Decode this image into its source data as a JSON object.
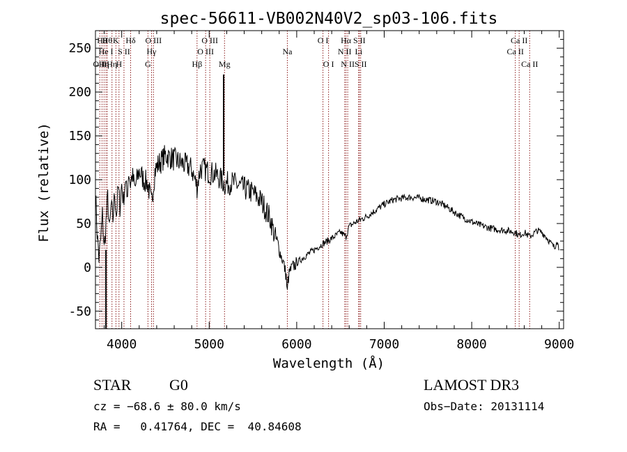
{
  "chart_data": {
    "type": "line",
    "title": "spec-56611-VB002N40V2_sp03-106.fits",
    "xlabel": "Wavelength (Å)",
    "ylabel": "Flux (relative)",
    "xlim": [
      3700,
      9050
    ],
    "ylim": [
      -70,
      270
    ],
    "xticks": [
      4000,
      5000,
      6000,
      7000,
      8000,
      9000
    ],
    "yticks": [
      -50,
      0,
      50,
      100,
      150,
      200,
      250
    ],
    "series": [
      {
        "name": "flux",
        "points": [
          [
            3700,
            85
          ],
          [
            3720,
            40
          ],
          [
            3740,
            10
          ],
          [
            3760,
            30
          ],
          [
            3780,
            60
          ],
          [
            3800,
            20
          ],
          [
            3820,
            50
          ],
          [
            3840,
            80
          ],
          [
            3860,
            40
          ],
          [
            3880,
            70
          ],
          [
            3900,
            55
          ],
          [
            3920,
            85
          ],
          [
            3940,
            60
          ],
          [
            3960,
            90
          ],
          [
            3980,
            70
          ],
          [
            4000,
            95
          ],
          [
            4020,
            75
          ],
          [
            4040,
            100
          ],
          [
            4060,
            80
          ],
          [
            4080,
            110
          ],
          [
            4100,
            95
          ],
          [
            4120,
            105
          ],
          [
            4150,
            90
          ],
          [
            4200,
            110
          ],
          [
            4250,
            100
          ],
          [
            4300,
            95
          ],
          [
            4340,
            72
          ],
          [
            4380,
            110
          ],
          [
            4420,
            118
          ],
          [
            4460,
            122
          ],
          [
            4500,
            128
          ],
          [
            4540,
            126
          ],
          [
            4580,
            124
          ],
          [
            4620,
            122
          ],
          [
            4660,
            120
          ],
          [
            4700,
            118
          ],
          [
            4760,
            115
          ],
          [
            4800,
            112
          ],
          [
            4861,
            92
          ],
          [
            4900,
            113
          ],
          [
            4950,
            112
          ],
          [
            5000,
            108
          ],
          [
            5050,
            107
          ],
          [
            5100,
            104
          ],
          [
            5150,
            98
          ],
          [
            5180,
            95
          ],
          [
            5250,
            97
          ],
          [
            5300,
            95
          ],
          [
            5400,
            90
          ],
          [
            5500,
            85
          ],
          [
            5550,
            80
          ],
          [
            5600,
            75
          ],
          [
            5650,
            65
          ],
          [
            5700,
            55
          ],
          [
            5750,
            35
          ],
          [
            5800,
            20
          ],
          [
            5850,
            5
          ],
          [
            5880,
            -10
          ],
          [
            5893,
            -30
          ],
          [
            5900,
            -15
          ],
          [
            5920,
            -5
          ],
          [
            5950,
            0
          ],
          [
            6000,
            5
          ],
          [
            6100,
            13
          ],
          [
            6200,
            20
          ],
          [
            6300,
            27
          ],
          [
            6400,
            33
          ],
          [
            6500,
            40
          ],
          [
            6563,
            35
          ],
          [
            6600,
            47
          ],
          [
            6700,
            53
          ],
          [
            6800,
            58
          ],
          [
            6900,
            65
          ],
          [
            7000,
            72
          ],
          [
            7100,
            77
          ],
          [
            7200,
            79
          ],
          [
            7300,
            80
          ],
          [
            7400,
            79
          ],
          [
            7500,
            77
          ],
          [
            7600,
            75
          ],
          [
            7700,
            70
          ],
          [
            7800,
            63
          ],
          [
            7900,
            57
          ],
          [
            8000,
            52
          ],
          [
            8100,
            48
          ],
          [
            8200,
            45
          ],
          [
            8300,
            43
          ],
          [
            8400,
            42
          ],
          [
            8500,
            40
          ],
          [
            8542,
            36
          ],
          [
            8600,
            40
          ],
          [
            8662,
            35
          ],
          [
            8700,
            38
          ],
          [
            8750,
            42
          ],
          [
            8800,
            40
          ],
          [
            8850,
            35
          ],
          [
            8900,
            28
          ],
          [
            8950,
            22
          ],
          [
            8970,
            32
          ],
          [
            9000,
            20
          ]
        ]
      }
    ],
    "spike": {
      "x": 5165,
      "y_top": 220,
      "y_bottom": 105
    },
    "dip": {
      "x": 3820,
      "y": -70
    },
    "line_markers": [
      {
        "x": 3750,
        "label": "O II",
        "row": 3
      },
      {
        "x": 3775,
        "label": "Hθ",
        "row": 1
      },
      {
        "x": 3798,
        "label": "Hη",
        "row": 3
      },
      {
        "x": 3820,
        "label": "He I",
        "row": 2
      },
      {
        "x": 3835,
        "label": "Hθ",
        "row": 1
      },
      {
        "x": 3889,
        "label": "Hη",
        "row": 3
      },
      {
        "x": 3934,
        "label": "K",
        "row": 1
      },
      {
        "x": 3969,
        "label": "H",
        "row": 3
      },
      {
        "x": 4026,
        "label": "S II",
        "row": 2
      },
      {
        "x": 4102,
        "label": "Hδ",
        "row": 1
      },
      {
        "x": 4300,
        "label": "G",
        "row": 3
      },
      {
        "x": 4341,
        "label": "Hγ",
        "row": 2
      },
      {
        "x": 4363,
        "label": "O III",
        "row": 1
      },
      {
        "x": 4861,
        "label": "Hβ",
        "row": 3
      },
      {
        "x": 4959,
        "label": "O III",
        "row": 2
      },
      {
        "x": 5007,
        "label": "O III",
        "row": 1
      },
      {
        "x": 5175,
        "label": "Mg",
        "row": 3
      },
      {
        "x": 5893,
        "label": "Na",
        "row": 2
      },
      {
        "x": 6300,
        "label": "O I",
        "row": 1
      },
      {
        "x": 6364,
        "label": "O I",
        "row": 3
      },
      {
        "x": 6548,
        "label": "N II",
        "row": 2
      },
      {
        "x": 6563,
        "label": "Hα",
        "row": 1
      },
      {
        "x": 6583,
        "label": "N II",
        "row": 3
      },
      {
        "x": 6708,
        "label": "Li",
        "row": 2
      },
      {
        "x": 6716,
        "label": "S II",
        "row": 1
      },
      {
        "x": 6731,
        "label": "S II",
        "row": 3
      },
      {
        "x": 8498,
        "label": "Ca II",
        "row": 2
      },
      {
        "x": 8542,
        "label": "Ca II",
        "row": 1
      },
      {
        "x": 8662,
        "label": "Ca II",
        "row": 3
      }
    ]
  },
  "footer": {
    "object_type": "STAR",
    "subclass": "G0",
    "survey": "LAMOST DR3",
    "cz": "cz = −68.6 ± 80.0 km/s",
    "obs_date": "Obs−Date: 20131114",
    "radec": "RA =   0.41764, DEC =  40.84608"
  }
}
